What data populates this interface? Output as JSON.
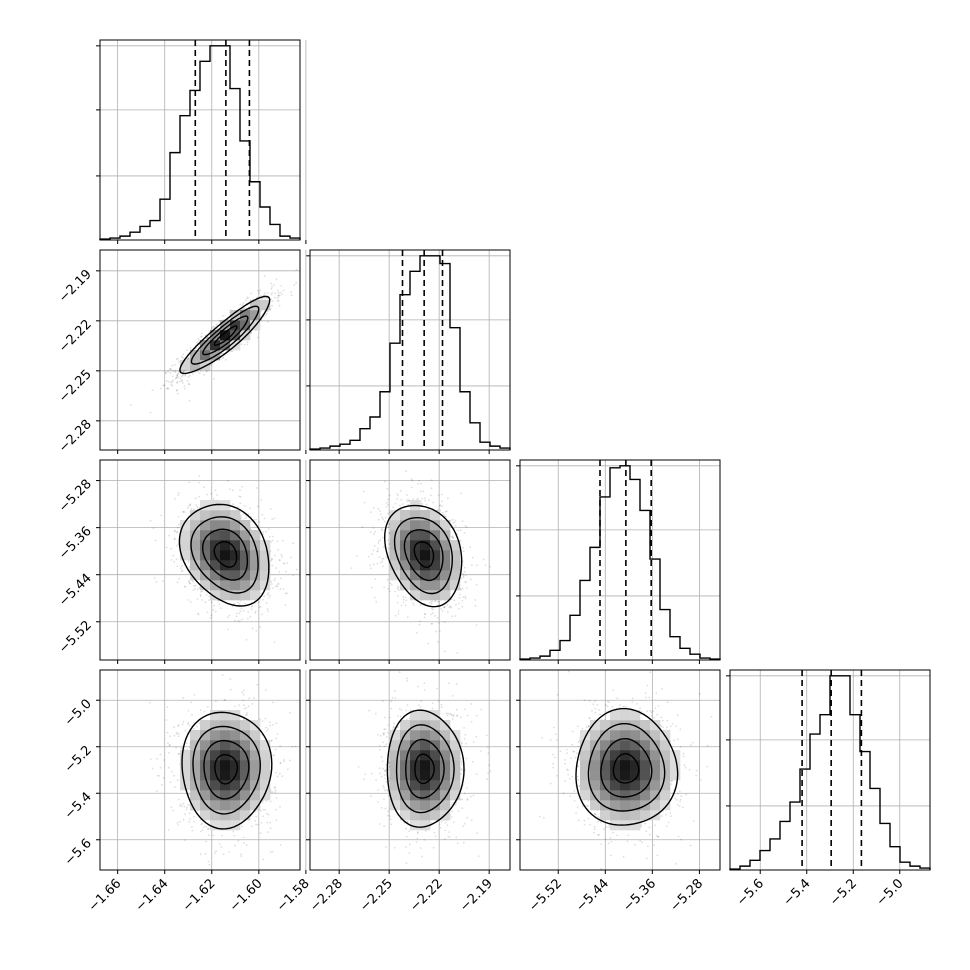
{
  "chart_data": {
    "type": "corner",
    "n_params": 4,
    "colors": {
      "line": "#000000",
      "grid": "#b0b0b0",
      "points": "#000000",
      "background": "#ffffff"
    },
    "grid": true,
    "params": [
      {
        "ticks": [
          -1.66,
          -1.64,
          -1.62,
          -1.6,
          -1.58
        ],
        "tick_labels": [
          "−1.66",
          "−1.64",
          "−1.62",
          "−1.60",
          "−1.58"
        ],
        "range": [
          -1.6675,
          -1.5825
        ],
        "quantiles": [
          -1.627,
          -1.614,
          -1.604
        ],
        "median": -1.614,
        "sigma": 0.0095
      },
      {
        "ticks": [
          -2.28,
          -2.25,
          -2.22,
          -2.19
        ],
        "tick_labels": [
          "−2.28",
          "−2.25",
          "−2.22",
          "−2.19"
        ],
        "range": [
          -2.2975,
          -2.1775
        ],
        "quantiles": [
          -2.242,
          -2.229,
          -2.218
        ],
        "median": -2.229,
        "sigma": 0.0115
      },
      {
        "ticks": [
          -5.52,
          -5.44,
          -5.36,
          -5.28
        ],
        "tick_labels": [
          "−5.52",
          "−5.44",
          "−5.36",
          "−5.28"
        ],
        "range": [
          -5.585,
          -5.245
        ],
        "quantiles": [
          -5.449,
          -5.405,
          -5.362
        ],
        "median": -5.405,
        "sigma": 0.043
      },
      {
        "ticks": [
          -5.6,
          -5.4,
          -5.2,
          -5.0
        ],
        "tick_labels": [
          "−5.6",
          "−5.4",
          "−5.2",
          "−5.0"
        ],
        "range": [
          -5.73,
          -4.87
        ],
        "quantiles": [
          -5.42,
          -5.295,
          -5.165
        ],
        "median": -5.295,
        "sigma": 0.125
      }
    ],
    "histograms": [
      {
        "param": 0,
        "bins": 20,
        "counts": [
          0.5,
          1,
          2,
          4,
          7,
          10,
          21,
          45,
          64,
          77,
          92,
          100,
          100,
          78,
          51,
          30,
          17,
          8,
          2,
          1
        ],
        "ymax": 103,
        "y_ticks": [
          0.33,
          0.67,
          1.0
        ]
      },
      {
        "param": 1,
        "bins": 20,
        "counts": [
          0.5,
          1,
          2,
          3,
          5,
          11,
          17,
          30,
          55,
          80,
          92,
          100,
          100,
          96,
          63,
          30,
          14,
          4,
          2,
          1
        ],
        "ymax": 103,
        "y_ticks": [
          0.33,
          0.67,
          1.0
        ]
      },
      {
        "param": 2,
        "bins": 20,
        "counts": [
          0.5,
          1,
          2,
          5,
          10,
          23,
          41,
          58,
          84,
          99,
          100,
          93,
          77,
          52,
          26,
          12,
          6,
          3,
          1,
          0.5
        ],
        "ymax": 103,
        "y_ticks": [
          0.33,
          0.67,
          1.0
        ]
      },
      {
        "param": 3,
        "bins": 20,
        "counts": [
          0.5,
          2,
          5,
          10,
          16,
          25,
          35,
          52,
          70,
          80,
          100,
          100,
          80,
          61,
          42,
          24,
          12,
          4,
          2,
          1
        ],
        "ymax": 103,
        "y_ticks": [
          0.33,
          0.67,
          1.0
        ]
      }
    ],
    "pairs": [
      {
        "x": 0,
        "y": 1,
        "correlation": 0.9
      },
      {
        "x": 0,
        "y": 2,
        "correlation": -0.25
      },
      {
        "x": 1,
        "y": 2,
        "correlation": -0.25
      },
      {
        "x": 0,
        "y": 3,
        "correlation": 0.0
      },
      {
        "x": 1,
        "y": 3,
        "correlation": 0.0
      },
      {
        "x": 2,
        "y": 3,
        "correlation": 0.0
      }
    ],
    "contour_levels_sigma": [
      0.5,
      1.0,
      1.5,
      2.0
    ]
  }
}
